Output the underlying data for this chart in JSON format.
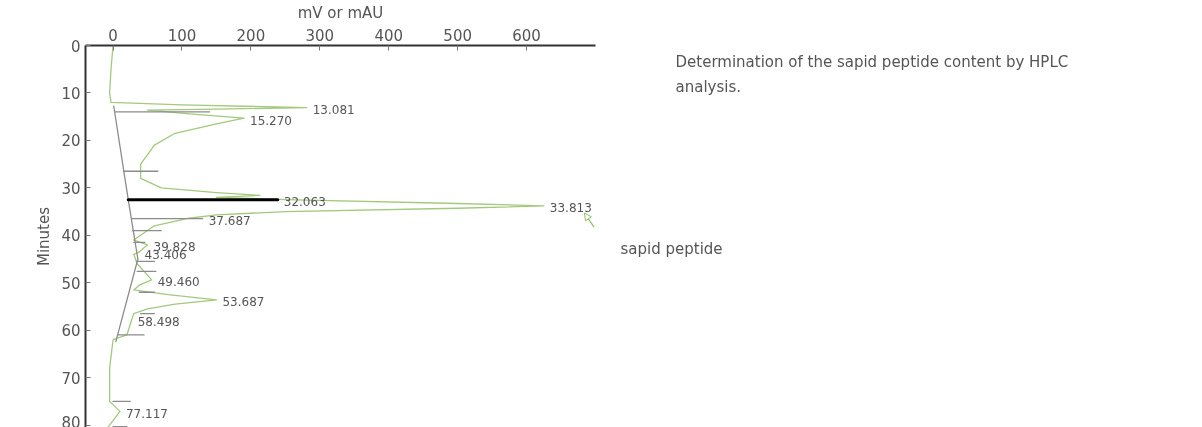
{
  "chart_data": {
    "type": "line",
    "title": "Determination of the sapid peptide content by HPLC analysis.",
    "xlabel": "mV or mAU",
    "ylabel": "Minutes",
    "xlim": [
      -40,
      700
    ],
    "xticks": [
      0,
      100,
      200,
      300,
      400,
      500,
      600
    ],
    "ylim": [
      80.5,
      0
    ],
    "yticks": [
      0,
      10,
      20,
      30,
      40,
      50,
      60,
      70,
      80
    ],
    "series": [
      {
        "color": "#a3c97c",
        "x": [
          0,
          -3,
          -5,
          -3,
          100,
          281,
          150,
          50,
          120,
          190,
          150,
          90,
          60,
          40,
          40,
          70,
          150,
          213,
          150,
          250,
          500,
          625,
          500,
          250,
          150,
          110,
          60,
          40,
          30,
          50,
          37,
          30,
          35,
          56,
          38,
          30,
          80,
          150,
          90,
          50,
          30,
          27,
          20,
          0,
          -5,
          -5,
          10,
          -5,
          -8
        ],
        "values": [
          0,
          5,
          10,
          12,
          12.5,
          13.1,
          13.4,
          13.6,
          14.5,
          15.3,
          16.5,
          18.5,
          21,
          25,
          28,
          30,
          31,
          31.6,
          32,
          32.5,
          33.3,
          33.8,
          34.3,
          35,
          35.7,
          36.4,
          38,
          40,
          41,
          42,
          43.6,
          44,
          46,
          49.4,
          50.5,
          51.5,
          52.5,
          53.6,
          54.5,
          55.5,
          56.5,
          57.8,
          61,
          62,
          68,
          75,
          77.1,
          80,
          80.5
        ]
      },
      {
        "color": "#8c8c8c",
        "x": [
          1,
          22,
          36,
          4,
          null,
          3,
          140,
          null,
          15,
          65,
          null,
          27,
          130,
          null,
          28,
          70,
          null,
          30,
          46,
          null,
          34,
          60,
          null,
          35,
          62,
          null,
          38,
          60,
          null,
          40,
          60,
          null,
          8,
          45,
          null,
          0,
          25,
          null,
          0,
          20
        ],
        "values": [
          12.8,
          32.5,
          45,
          62.4,
          null,
          14,
          14,
          null,
          26.5,
          26.5,
          null,
          36.5,
          36.5,
          null,
          39,
          39,
          null,
          41.5,
          41.5,
          null,
          45.5,
          45.5,
          null,
          47.6,
          47.6,
          null,
          52,
          52,
          null,
          56.5,
          56.5,
          null,
          61,
          61,
          null,
          75,
          75,
          null,
          80.3,
          80.3
        ]
      },
      {
        "color": "#000000",
        "x": [
          22,
          239
        ],
        "values": [
          32.5,
          32.5
        ]
      }
    ],
    "annotations": [
      {
        "text": "13.081",
        "x": 281,
        "y": 13.1
      },
      {
        "text": "15.270",
        "x": 190,
        "y": 15.3
      },
      {
        "text": "32.063",
        "x": 239,
        "y": 32.5
      },
      {
        "text": "33.813",
        "x": 625,
        "y": 33.8
      },
      {
        "text": "37.687",
        "x": 130,
        "y": 36.5
      },
      {
        "text": "39.828",
        "x": 50,
        "y": 42
      },
      {
        "text": "43.406",
        "x": 37,
        "y": 43.6
      },
      {
        "text": "49.460",
        "x": 56,
        "y": 49.4
      },
      {
        "text": "53.687",
        "x": 150,
        "y": 53.6
      },
      {
        "text": "58.498",
        "x": 27,
        "y": 57.8
      },
      {
        "text": "77.117",
        "x": 10,
        "y": 77.1
      },
      "sapid peptide"
    ]
  }
}
